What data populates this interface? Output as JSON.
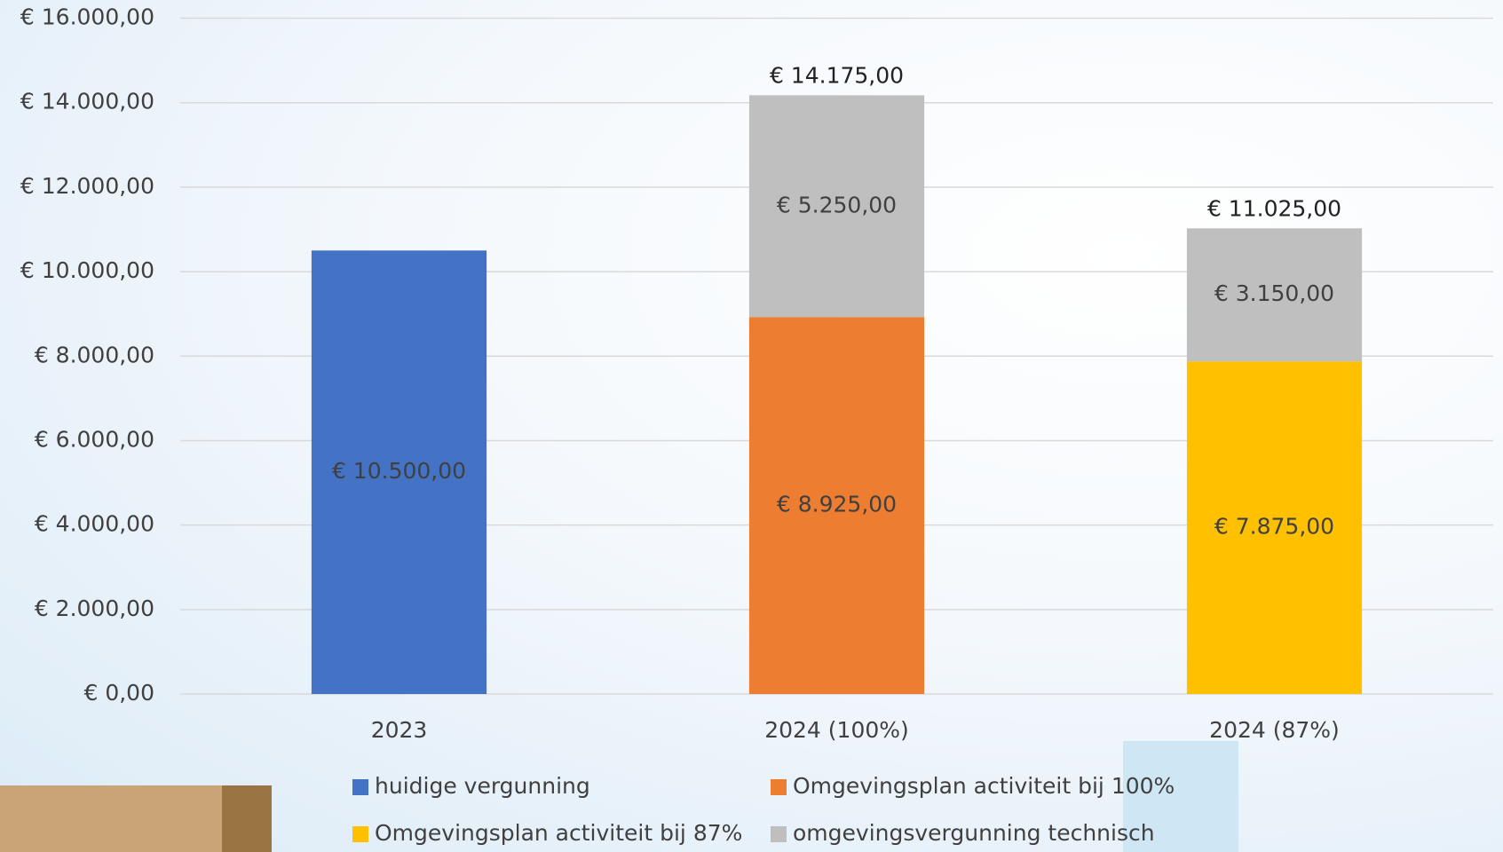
{
  "chart_data": {
    "type": "stacked_bar",
    "categories": [
      "2023",
      "2024 (100%)",
      "2024 (87%)"
    ],
    "series": [
      {
        "name": "huidige vergunning",
        "color": "#4472c4",
        "values": [
          10500,
          null,
          null
        ],
        "value_labels": [
          "€ 10.500,00",
          null,
          null
        ]
      },
      {
        "name": "Omgevingsplan activiteit bij 100%",
        "color": "#ed7d31",
        "values": [
          null,
          8925,
          null
        ],
        "value_labels": [
          null,
          "€ 8.925,00",
          null
        ]
      },
      {
        "name": "Omgevingsplan activiteit bij 87%",
        "color": "#ffc000",
        "values": [
          null,
          null,
          7875
        ],
        "value_labels": [
          null,
          null,
          "€ 7.875,00"
        ]
      },
      {
        "name": "omgevingsvergunning technisch",
        "color": "#bfbfbf",
        "values": [
          null,
          5250,
          3150
        ],
        "value_labels": [
          null,
          "€ 5.250,00",
          "€ 3.150,00"
        ]
      }
    ],
    "totals": [
      null,
      14175,
      11025
    ],
    "total_labels": [
      null,
      "€ 14.175,00",
      "€ 11.025,00"
    ],
    "ylim": [
      0,
      16000
    ],
    "yticks": [
      {
        "value": 0,
        "label": "€ 0,00"
      },
      {
        "value": 2000,
        "label": "€ 2.000,00"
      },
      {
        "value": 4000,
        "label": "€ 4.000,00"
      },
      {
        "value": 6000,
        "label": "€ 6.000,00"
      },
      {
        "value": 8000,
        "label": "€ 8.000,00"
      },
      {
        "value": 10000,
        "label": "€ 10.000,00"
      },
      {
        "value": 12000,
        "label": "€ 12.000,00"
      },
      {
        "value": 14000,
        "label": "€ 14.000,00"
      },
      {
        "value": 16000,
        "label": "€ 16.000,00"
      }
    ],
    "grid": true
  }
}
